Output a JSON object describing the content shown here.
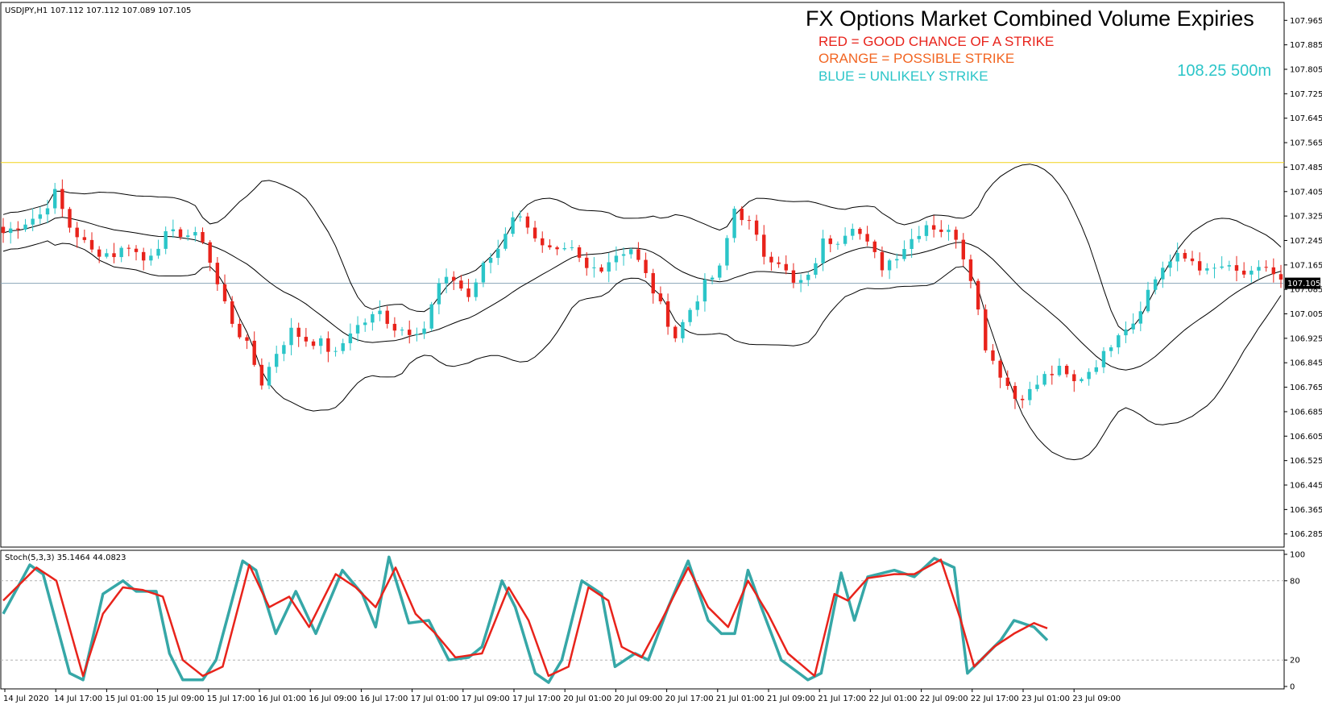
{
  "header": {
    "symbol_info": "USDJPY,H1  107.112 107.112 107.089 107.105",
    "title": "FX Options Market Combined Volume Expiries",
    "legend": [
      {
        "text": "RED = GOOD CHANCE OF A STRIKE",
        "color": "#e8231b"
      },
      {
        "text": "ORANGE = POSSIBLE STRIKE",
        "color": "#f26522"
      },
      {
        "text": "BLUE = UNLIKELY STRIKE",
        "color": "#2bc5c8"
      }
    ],
    "expiry_label": "108.25 500m",
    "expiry_color": "#2bc5c8"
  },
  "colors": {
    "bull": "#2bc5c8",
    "bear": "#e8231b",
    "bands": "#000000",
    "yellow_line": "#f2d21c",
    "price_line": "#8aa4b8",
    "stoch_main": "#36a7a7",
    "stoch_signal": "#e8231b"
  },
  "chart_data": [
    {
      "type": "candlestick",
      "symbol": "USDJPY",
      "timeframe": "H1",
      "ylim": [
        106.25,
        108.0
      ],
      "y_ticks": [
        "107.965",
        "107.885",
        "107.805",
        "107.725",
        "107.645",
        "107.565",
        "107.485",
        "107.405",
        "107.325",
        "107.245",
        "107.165",
        "107.085",
        "107.005",
        "106.925",
        "106.845",
        "106.765",
        "106.685",
        "106.605",
        "106.525",
        "106.445",
        "106.365",
        "106.285"
      ],
      "current_price": "107.105",
      "current_price_value": 107.105,
      "horizontal_line": 107.5,
      "x_tick_labels": [
        "14 Jul 2020",
        "14 Jul 17:00",
        "15 Jul 01:00",
        "15 Jul 09:00",
        "15 Jul 17:00",
        "16 Jul 01:00",
        "16 Jul 09:00",
        "16 Jul 17:00",
        "17 Jul 01:00",
        "17 Jul 09:00",
        "17 Jul 17:00",
        "20 Jul 01:00",
        "20 Jul 09:00",
        "20 Jul 17:00",
        "21 Jul 01:00",
        "21 Jul 09:00",
        "21 Jul 17:00",
        "22 Jul 01:00",
        "22 Jul 09:00",
        "22 Jul 17:00",
        "23 Jul 01:00",
        "23 Jul 09:00"
      ],
      "close_path": [
        [
          0,
          107.27
        ],
        [
          5,
          107.33
        ],
        [
          7,
          107.4
        ],
        [
          9,
          107.29
        ],
        [
          12,
          107.21
        ],
        [
          15,
          107.2
        ],
        [
          17,
          107.23
        ],
        [
          19,
          107.18
        ],
        [
          22,
          107.26
        ],
        [
          24,
          107.27
        ],
        [
          27,
          107.25
        ],
        [
          29,
          107.1
        ],
        [
          31,
          106.98
        ],
        [
          33,
          106.9
        ],
        [
          35,
          106.78
        ],
        [
          37,
          106.88
        ],
        [
          39,
          106.95
        ],
        [
          41,
          106.92
        ],
        [
          43,
          106.91
        ],
        [
          45,
          106.87
        ],
        [
          47,
          106.95
        ],
        [
          49,
          106.98
        ],
        [
          51,
          107.01
        ],
        [
          53,
          106.96
        ],
        [
          55,
          106.95
        ],
        [
          57,
          106.96
        ],
        [
          59,
          107.1
        ],
        [
          61,
          107.12
        ],
        [
          63,
          107.06
        ],
        [
          65,
          107.16
        ],
        [
          67,
          107.22
        ],
        [
          69,
          107.33
        ],
        [
          71,
          107.3
        ],
        [
          73,
          107.22
        ],
        [
          75,
          107.2
        ],
        [
          77,
          107.21
        ],
        [
          79,
          107.15
        ],
        [
          81,
          107.16
        ],
        [
          83,
          107.2
        ],
        [
          85,
          107.22
        ],
        [
          87,
          107.13
        ],
        [
          89,
          107.03
        ],
        [
          91,
          106.93
        ],
        [
          93,
          107.02
        ],
        [
          95,
          107.1
        ],
        [
          97,
          107.15
        ],
        [
          99,
          107.35
        ],
        [
          101,
          107.3
        ],
        [
          103,
          107.2
        ],
        [
          105,
          107.18
        ],
        [
          107,
          107.1
        ],
        [
          109,
          107.12
        ],
        [
          111,
          107.24
        ],
        [
          113,
          107.25
        ],
        [
          115,
          107.3
        ],
        [
          117,
          107.23
        ],
        [
          119,
          107.16
        ],
        [
          121,
          107.2
        ],
        [
          123,
          107.25
        ],
        [
          125,
          107.3
        ],
        [
          127,
          107.28
        ],
        [
          129,
          107.26
        ],
        [
          131,
          107.13
        ],
        [
          133,
          106.9
        ],
        [
          135,
          106.81
        ],
        [
          137,
          106.73
        ],
        [
          139,
          106.75
        ],
        [
          141,
          106.8
        ],
        [
          143,
          106.82
        ],
        [
          145,
          106.78
        ],
        [
          147,
          106.82
        ],
        [
          149,
          106.87
        ],
        [
          151,
          106.95
        ],
        [
          153,
          106.98
        ],
        [
          155,
          107.08
        ],
        [
          157,
          107.16
        ],
        [
          159,
          107.19
        ],
        [
          161,
          107.18
        ],
        [
          163,
          107.14
        ],
        [
          165,
          107.16
        ],
        [
          167,
          107.14
        ],
        [
          169,
          107.13
        ],
        [
          171,
          107.16
        ],
        [
          173,
          107.11
        ]
      ]
    },
    {
      "type": "line",
      "title": "Stoch(5,3,3) 35.1464 44.0823",
      "ylim": [
        0,
        100
      ],
      "y_ticks": [
        "100",
        "80",
        "20",
        "0"
      ],
      "levels": [
        80,
        20
      ],
      "series": [
        {
          "name": "main",
          "value": 35.1464
        },
        {
          "name": "signal",
          "value": 44.0823
        }
      ],
      "main_path": [
        [
          0,
          55
        ],
        [
          4,
          92
        ],
        [
          6,
          85
        ],
        [
          10,
          10
        ],
        [
          12,
          5
        ],
        [
          15,
          70
        ],
        [
          18,
          80
        ],
        [
          20,
          72
        ],
        [
          23,
          72
        ],
        [
          25,
          25
        ],
        [
          27,
          5
        ],
        [
          30,
          5
        ],
        [
          32,
          20
        ],
        [
          36,
          95
        ],
        [
          38,
          88
        ],
        [
          41,
          40
        ],
        [
          44,
          72
        ],
        [
          47,
          40
        ],
        [
          51,
          88
        ],
        [
          54,
          70
        ],
        [
          56,
          45
        ],
        [
          58,
          98
        ],
        [
          61,
          48
        ],
        [
          64,
          50
        ],
        [
          67,
          20
        ],
        [
          70,
          22
        ],
        [
          72,
          30
        ],
        [
          75,
          80
        ],
        [
          77,
          60
        ],
        [
          80,
          10
        ],
        [
          82,
          3
        ],
        [
          84,
          20
        ],
        [
          87,
          80
        ],
        [
          90,
          70
        ],
        [
          92,
          15
        ],
        [
          95,
          25
        ],
        [
          97,
          20
        ],
        [
          100,
          60
        ],
        [
          103,
          95
        ],
        [
          106,
          50
        ],
        [
          108,
          40
        ],
        [
          110,
          40
        ],
        [
          112,
          88
        ],
        [
          114,
          60
        ],
        [
          117,
          20
        ],
        [
          121,
          5
        ],
        [
          123,
          10
        ],
        [
          126,
          86
        ],
        [
          128,
          50
        ],
        [
          130,
          83
        ],
        [
          134,
          88
        ],
        [
          137,
          83
        ],
        [
          140,
          97
        ],
        [
          143,
          90
        ],
        [
          145,
          10
        ],
        [
          147,
          20
        ],
        [
          150,
          35
        ],
        [
          152,
          50
        ],
        [
          155,
          45
        ],
        [
          157,
          35
        ]
      ],
      "signal_path": [
        [
          0,
          65
        ],
        [
          5,
          90
        ],
        [
          8,
          80
        ],
        [
          12,
          8
        ],
        [
          15,
          55
        ],
        [
          18,
          75
        ],
        [
          21,
          73
        ],
        [
          24,
          68
        ],
        [
          27,
          20
        ],
        [
          30,
          8
        ],
        [
          33,
          15
        ],
        [
          37,
          92
        ],
        [
          40,
          60
        ],
        [
          43,
          68
        ],
        [
          46,
          45
        ],
        [
          50,
          85
        ],
        [
          53,
          75
        ],
        [
          56,
          60
        ],
        [
          59,
          90
        ],
        [
          62,
          55
        ],
        [
          65,
          40
        ],
        [
          68,
          22
        ],
        [
          72,
          25
        ],
        [
          76,
          75
        ],
        [
          79,
          50
        ],
        [
          82,
          8
        ],
        [
          85,
          15
        ],
        [
          88,
          75
        ],
        [
          91,
          65
        ],
        [
          93,
          30
        ],
        [
          96,
          22
        ],
        [
          99,
          50
        ],
        [
          103,
          90
        ],
        [
          106,
          60
        ],
        [
          109,
          45
        ],
        [
          112,
          80
        ],
        [
          115,
          55
        ],
        [
          118,
          25
        ],
        [
          122,
          8
        ],
        [
          125,
          70
        ],
        [
          127,
          65
        ],
        [
          130,
          82
        ],
        [
          134,
          85
        ],
        [
          137,
          85
        ],
        [
          141,
          96
        ],
        [
          144,
          50
        ],
        [
          146,
          15
        ],
        [
          149,
          30
        ],
        [
          152,
          40
        ],
        [
          155,
          48
        ],
        [
          157,
          44
        ]
      ]
    }
  ]
}
